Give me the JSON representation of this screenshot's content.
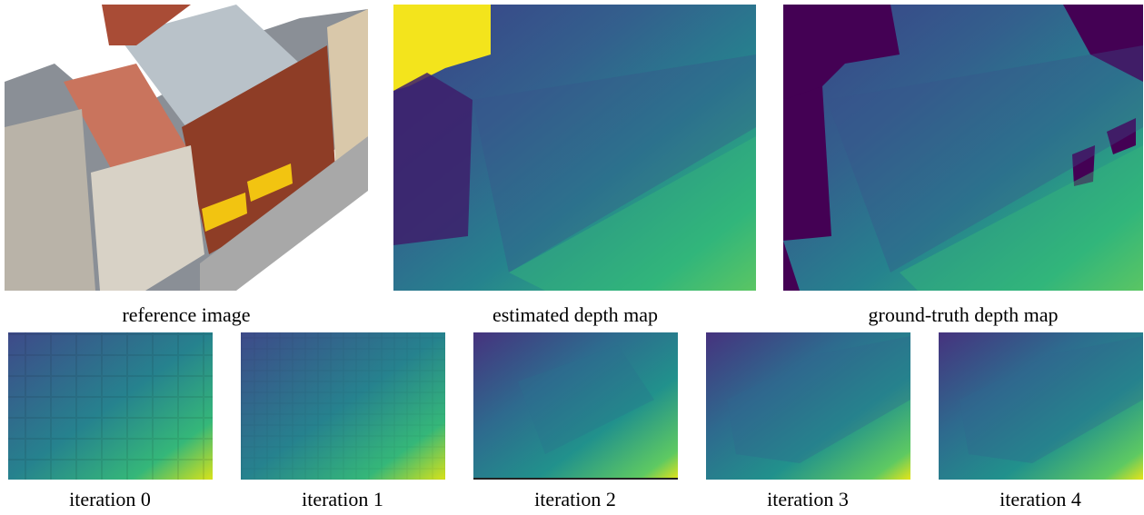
{
  "panels": {
    "top": [
      "reference image",
      "estimated depth map",
      "ground-truth depth map"
    ],
    "bottom": [
      "iteration 0",
      "iteration 1",
      "iteration 2",
      "iteration 3",
      "iteration 4"
    ]
  }
}
